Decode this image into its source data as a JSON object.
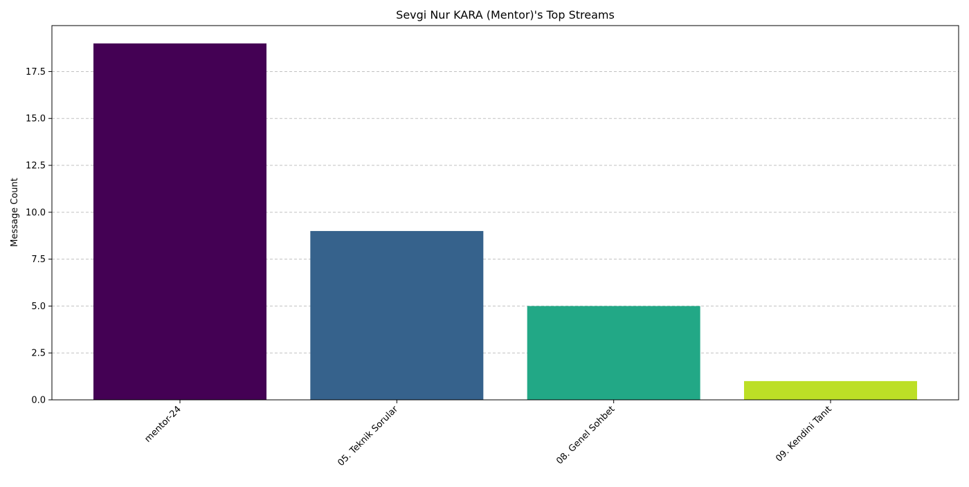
{
  "chart_data": {
    "type": "bar",
    "title": "Sevgi Nur KARA (Mentor)'s Top Streams",
    "xlabel": "",
    "ylabel": "Message Count",
    "categories": [
      "mentor-24",
      "05. Teknik Sorular",
      "08. Genel Sohbet",
      "09. Kendini Tanıt"
    ],
    "values": [
      19,
      9,
      5,
      1
    ],
    "colors": [
      "#440154",
      "#36628c",
      "#22a886",
      "#bcdf26"
    ],
    "ylim": [
      0,
      19.95
    ],
    "yticks": [
      0.0,
      2.5,
      5.0,
      7.5,
      10.0,
      12.5,
      15.0,
      17.5
    ],
    "ytick_labels": [
      "0.0",
      "2.5",
      "5.0",
      "7.5",
      "10.0",
      "12.5",
      "15.0",
      "17.5"
    ],
    "grid": "y-dashed",
    "grid_color": "#c0c0c0",
    "legend": "none"
  }
}
